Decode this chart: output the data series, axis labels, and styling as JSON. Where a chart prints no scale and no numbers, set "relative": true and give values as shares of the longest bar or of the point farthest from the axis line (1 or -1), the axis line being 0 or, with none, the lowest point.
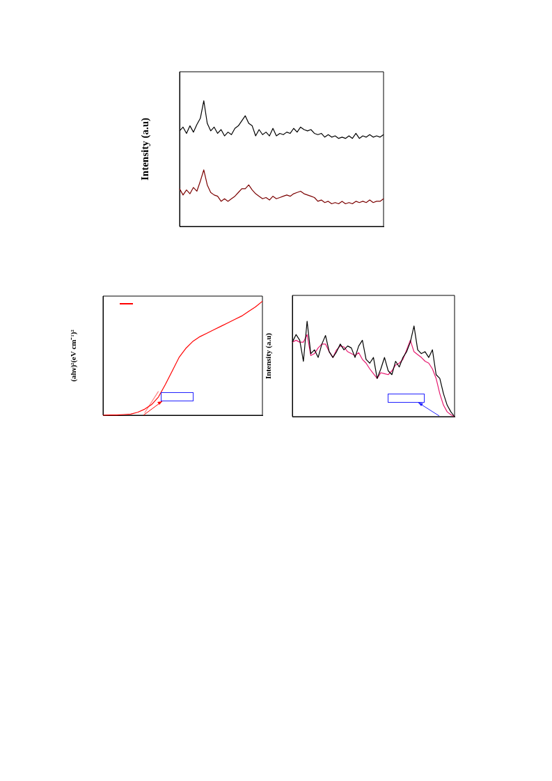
{
  "chart_data": [
    {
      "type": "line",
      "ylabel": "Intensity (a.u)",
      "relative": true,
      "categories": [
        null,
        null,
        null,
        null,
        null,
        null,
        null,
        null,
        null,
        null,
        null,
        null,
        null,
        null,
        null,
        null,
        null,
        null,
        null,
        null,
        null,
        null,
        null,
        null,
        null,
        null,
        null,
        null,
        null,
        null,
        null,
        null,
        null,
        null,
        null,
        null,
        null,
        null,
        null,
        null,
        null,
        null,
        null,
        null,
        null,
        null,
        null,
        null,
        null,
        null,
        null,
        null,
        null,
        null,
        null,
        null,
        null,
        null,
        null,
        null
      ],
      "series": [
        {
          "color": "#000000",
          "values": [
            0.76,
            0.79,
            0.74,
            0.8,
            0.75,
            0.81,
            0.86,
            1.0,
            0.82,
            0.76,
            0.79,
            0.74,
            0.77,
            0.72,
            0.75,
            0.73,
            0.78,
            0.8,
            0.84,
            0.88,
            0.82,
            0.8,
            0.72,
            0.77,
            0.73,
            0.75,
            0.72,
            0.78,
            0.72,
            0.74,
            0.73,
            0.75,
            0.74,
            0.78,
            0.75,
            0.79,
            0.77,
            0.76,
            0.77,
            0.74,
            0.73,
            0.74,
            0.71,
            0.73,
            0.71,
            0.72,
            0.7,
            0.71,
            0.7,
            0.72,
            0.7,
            0.74,
            0.7,
            0.72,
            0.71,
            0.73,
            0.71,
            0.72,
            0.71,
            0.73
          ]
        },
        {
          "color": "#7b0000",
          "values": [
            0.3,
            0.25,
            0.29,
            0.26,
            0.31,
            0.28,
            0.36,
            0.45,
            0.33,
            0.27,
            0.25,
            0.24,
            0.2,
            0.22,
            0.2,
            0.22,
            0.24,
            0.27,
            0.3,
            0.3,
            0.33,
            0.29,
            0.26,
            0.24,
            0.22,
            0.23,
            0.21,
            0.24,
            0.22,
            0.23,
            0.24,
            0.25,
            0.24,
            0.26,
            0.27,
            0.28,
            0.26,
            0.25,
            0.24,
            0.23,
            0.2,
            0.21,
            0.19,
            0.2,
            0.18,
            0.19,
            0.18,
            0.2,
            0.18,
            0.19,
            0.18,
            0.2,
            0.19,
            0.2,
            0.19,
            0.21,
            0.19,
            0.2,
            0.2,
            0.22
          ]
        }
      ]
    },
    {
      "type": "line",
      "ylabel": "(ahν)²(eV cm⁻¹)²",
      "relative": true,
      "categories": [
        null,
        null,
        null,
        null,
        null,
        null,
        null,
        null,
        null,
        null,
        null,
        null,
        null,
        null,
        null,
        null,
        null,
        null,
        null,
        null,
        null,
        null,
        null,
        null
      ],
      "series": [
        {
          "color": "#ff0000",
          "values": [
            0,
            0.002,
            0.002,
            0.006,
            0.01,
            0.026,
            0.053,
            0.093,
            0.16,
            0.27,
            0.39,
            0.51,
            0.59,
            0.65,
            0.69,
            0.72,
            0.75,
            0.78,
            0.81,
            0.84,
            0.87,
            0.91,
            0.95,
            1.0
          ]
        },
        {
          "type": "line",
          "color": "#ff8080",
          "values": [
            null,
            null,
            null,
            null,
            null,
            null,
            0.02,
            null,
            0.21,
            null,
            null,
            null,
            null,
            null,
            null,
            null,
            null,
            null,
            null,
            null,
            null,
            null,
            null,
            null
          ]
        }
      ]
    },
    {
      "type": "line",
      "ylabel": "Intensity (a.u)",
      "relative": true,
      "categories": [
        null,
        null,
        null,
        null,
        null,
        null,
        null,
        null,
        null,
        null,
        null,
        null,
        null,
        null,
        null,
        null,
        null,
        null,
        null,
        null,
        null,
        null,
        null,
        null,
        null,
        null,
        null,
        null,
        null,
        null,
        null,
        null,
        null,
        null,
        null,
        null,
        null,
        null,
        null,
        null,
        null,
        null,
        null,
        null,
        null
      ],
      "series": [
        {
          "color": "#000000",
          "values": [
            0.78,
            0.86,
            0.8,
            0.58,
            1.0,
            0.66,
            0.7,
            0.62,
            0.76,
            0.85,
            0.68,
            0.62,
            0.68,
            0.76,
            0.7,
            0.74,
            0.72,
            0.62,
            0.74,
            0.8,
            0.6,
            0.56,
            0.62,
            0.4,
            0.5,
            0.62,
            0.48,
            0.44,
            0.58,
            0.52,
            0.62,
            0.68,
            0.78,
            0.95,
            0.7,
            0.66,
            0.68,
            0.62,
            0.7,
            0.44,
            0.4,
            0.24,
            0.12,
            0.05,
            0.0
          ]
        },
        {
          "color": "#e6186e",
          "values": [
            0.78,
            0.8,
            0.78,
            0.78,
            0.86,
            0.64,
            0.66,
            0.72,
            0.76,
            0.76,
            0.68,
            0.62,
            0.7,
            0.74,
            0.73,
            0.68,
            0.66,
            0.64,
            0.67,
            0.6,
            0.56,
            0.5,
            0.45,
            0.4,
            0.46,
            0.45,
            0.44,
            0.48,
            0.54,
            0.56,
            0.6,
            0.7,
            0.8,
            0.68,
            0.65,
            0.62,
            0.58,
            0.56,
            0.5,
            0.4,
            0.24,
            0.12,
            0.05,
            0.02,
            0.0
          ]
        }
      ]
    }
  ]
}
